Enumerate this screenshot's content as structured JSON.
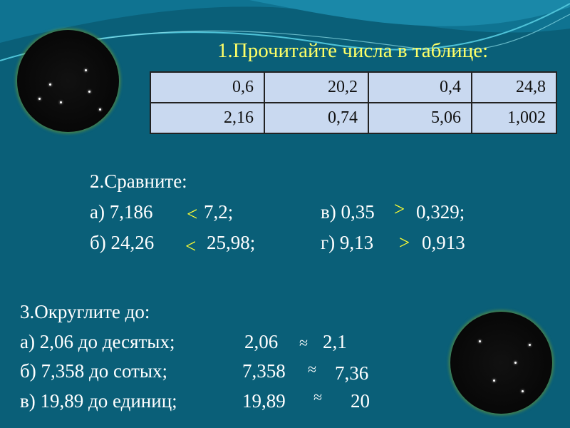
{
  "section1": {
    "title": "1.Прочитайте числа в таблице:",
    "table": [
      [
        "0,6",
        "20,2",
        "0,4",
        "24,8"
      ],
      [
        "2,16",
        "0,74",
        "5,06",
        "1,002"
      ]
    ]
  },
  "section2": {
    "title": "2.Сравните:",
    "items": [
      {
        "left": "а) 7,186",
        "sign": "<",
        "right": "7,2;"
      },
      {
        "left": "б) 24,26",
        "sign": "<",
        "right": "25,98;"
      },
      {
        "left": "в) 0,35",
        "sign": ">",
        "right": "0,329;"
      },
      {
        "left": "г) 9,13",
        "sign": ">",
        "right": "0,913"
      }
    ]
  },
  "section3": {
    "title": "3.Округлите до:",
    "items": [
      {
        "task": "а) 2,06 до десятых;",
        "number": "2,06",
        "sign": "≈",
        "result": "2,1"
      },
      {
        "task": "б) 7,358 до сотых;",
        "number": "7,358",
        "sign": "≈",
        "result": "7,36"
      },
      {
        "task": "в) 19,89 до единиц;",
        "number": "19,89",
        "sign": "≈",
        "result": "20"
      }
    ]
  },
  "colors": {
    "background": "#0a5f78",
    "title": "#ffff66",
    "signs": "#ffff33",
    "table": "#c9d9f0"
  }
}
